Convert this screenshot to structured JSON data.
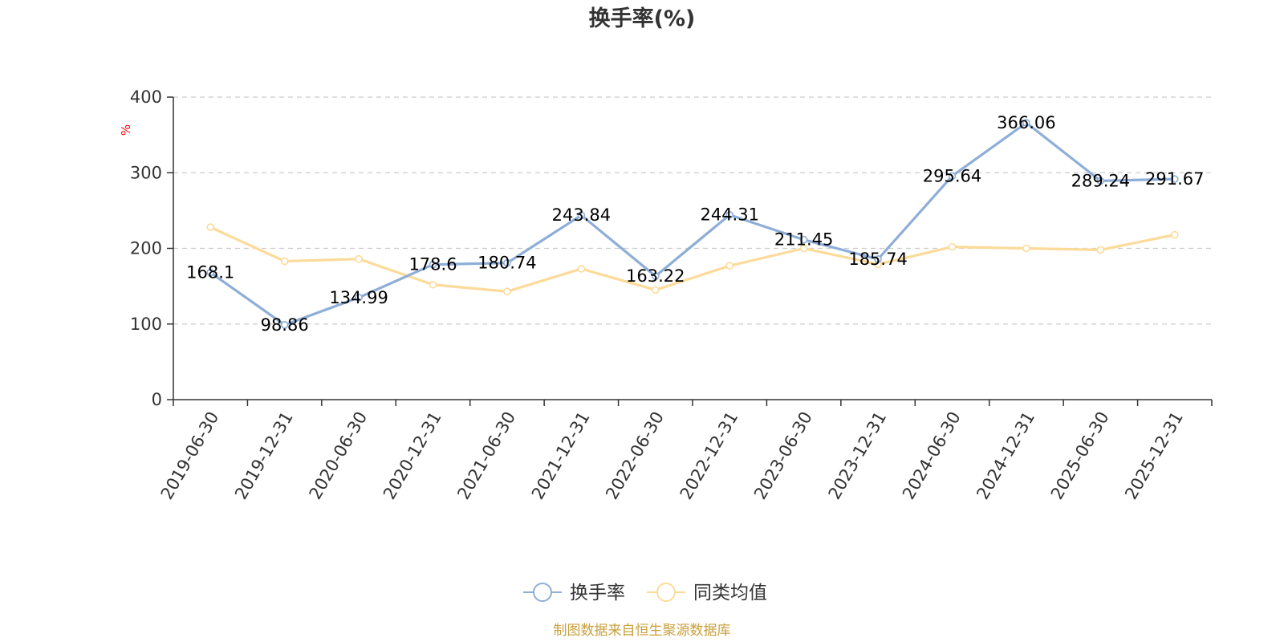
{
  "chart_data": {
    "type": "line",
    "title": "换手率(%)",
    "ylabel": "%",
    "ylim": [
      0,
      400
    ],
    "yticks": [
      0,
      100,
      200,
      300,
      400
    ],
    "grid": true,
    "legend_position": "bottom",
    "categories": [
      "2019-06-30",
      "2019-12-31",
      "2020-06-30",
      "2020-12-31",
      "2021-06-30",
      "2021-12-31",
      "2022-06-30",
      "2022-12-31",
      "2023-06-30",
      "2023-12-31",
      "2024-06-30",
      "2024-12-31",
      "2025-06-30",
      "2025-12-31"
    ],
    "series": [
      {
        "name": "换手率",
        "color": "#8eaed8",
        "values": [
          168.1,
          98.86,
          134.99,
          178.6,
          180.74,
          243.84,
          163.22,
          244.31,
          211.45,
          185.74,
          295.64,
          366.06,
          289.24,
          291.67
        ],
        "labels": [
          "168.1",
          "98.86",
          "134.99",
          "178.6",
          "180.74",
          "243.84",
          "163.22",
          "244.31",
          "211.45",
          "185.74",
          "295.64",
          "366.06",
          "289.24",
          "291.67"
        ]
      },
      {
        "name": "同类均值",
        "color": "#fcdb9a",
        "values": [
          228,
          183,
          186,
          152,
          143,
          173,
          145,
          177,
          200,
          179,
          202,
          200,
          198,
          218
        ]
      }
    ]
  },
  "source_text": "制图数据来自恒生聚源数据库",
  "source_color": "#c8a03c"
}
